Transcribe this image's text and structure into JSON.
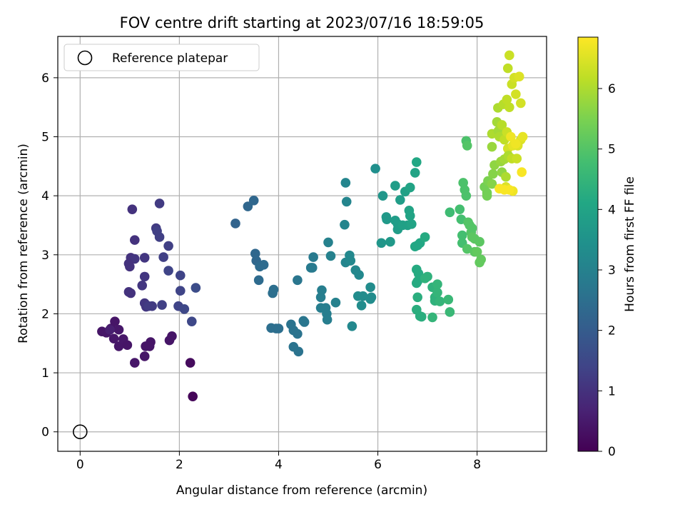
{
  "chart_data": {
    "type": "scatter",
    "title": "FOV centre drift starting at 2023/07/16 18:59:05",
    "xlabel": "Angular distance from reference (arcmin)",
    "ylabel": "Rotation from reference (arcmin)",
    "xlim": [
      -0.45,
      9.4
    ],
    "ylim": [
      -0.33,
      6.7
    ],
    "x_ticks": [
      0,
      2,
      4,
      6,
      8
    ],
    "y_ticks": [
      0,
      1,
      2,
      3,
      4,
      5,
      6
    ],
    "grid": true,
    "legend": {
      "position": "upper-left",
      "entries": [
        "Reference platepar"
      ]
    },
    "reference_point": {
      "x": 0,
      "y": 0
    },
    "colorbar": {
      "label": "Hours from first FF file",
      "colormap": "viridis",
      "range": [
        0,
        6.85
      ],
      "ticks": [
        0,
        1,
        2,
        3,
        4,
        5,
        6
      ]
    },
    "points": [
      {
        "x": 0.44,
        "y": 1.7,
        "h": 0.4
      },
      {
        "x": 0.53,
        "y": 1.68,
        "h": 0.42
      },
      {
        "x": 0.62,
        "y": 1.75,
        "h": 0.4
      },
      {
        "x": 0.7,
        "y": 1.87,
        "h": 0.4
      },
      {
        "x": 0.78,
        "y": 1.73,
        "h": 0.45
      },
      {
        "x": 0.68,
        "y": 1.58,
        "h": 0.45
      },
      {
        "x": 0.78,
        "y": 1.45,
        "h": 0.42
      },
      {
        "x": 0.87,
        "y": 1.57,
        "h": 0.45
      },
      {
        "x": 0.95,
        "y": 1.47,
        "h": 0.4
      },
      {
        "x": 1.1,
        "y": 1.17,
        "h": 0.45
      },
      {
        "x": 1.3,
        "y": 1.28,
        "h": 0.4
      },
      {
        "x": 1.32,
        "y": 1.45,
        "h": 0.4
      },
      {
        "x": 1.42,
        "y": 1.52,
        "h": 0.4
      },
      {
        "x": 1.4,
        "y": 1.45,
        "h": 0.4
      },
      {
        "x": 1.8,
        "y": 1.55,
        "h": 0.4
      },
      {
        "x": 1.85,
        "y": 1.62,
        "h": 0.4
      },
      {
        "x": 2.22,
        "y": 1.17,
        "h": 0.2
      },
      {
        "x": 2.27,
        "y": 0.6,
        "h": 0.1
      },
      {
        "x": 0.6,
        "y": 1.73,
        "h": 0.6
      },
      {
        "x": 1.05,
        "y": 3.77,
        "h": 1.0
      },
      {
        "x": 1.1,
        "y": 3.25,
        "h": 1.0
      },
      {
        "x": 1.02,
        "y": 2.95,
        "h": 1.0
      },
      {
        "x": 1.1,
        "y": 2.93,
        "h": 1.1
      },
      {
        "x": 0.98,
        "y": 2.85,
        "h": 1.0
      },
      {
        "x": 1.0,
        "y": 2.8,
        "h": 1.0
      },
      {
        "x": 0.98,
        "y": 2.37,
        "h": 1.0
      },
      {
        "x": 1.02,
        "y": 2.35,
        "h": 1.0
      },
      {
        "x": 1.3,
        "y": 2.95,
        "h": 1.1
      },
      {
        "x": 1.3,
        "y": 2.63,
        "h": 1.1
      },
      {
        "x": 1.25,
        "y": 2.48,
        "h": 1.1
      },
      {
        "x": 1.3,
        "y": 2.18,
        "h": 1.1
      },
      {
        "x": 1.33,
        "y": 2.12,
        "h": 1.1
      },
      {
        "x": 1.38,
        "y": 2.13,
        "h": 1.2
      },
      {
        "x": 1.45,
        "y": 2.13,
        "h": 1.2
      },
      {
        "x": 1.6,
        "y": 3.87,
        "h": 1.2
      },
      {
        "x": 1.53,
        "y": 3.45,
        "h": 1.2
      },
      {
        "x": 1.55,
        "y": 3.4,
        "h": 1.3
      },
      {
        "x": 1.6,
        "y": 3.3,
        "h": 1.3
      },
      {
        "x": 1.78,
        "y": 3.15,
        "h": 1.3
      },
      {
        "x": 1.68,
        "y": 2.96,
        "h": 1.3
      },
      {
        "x": 1.78,
        "y": 2.73,
        "h": 1.4
      },
      {
        "x": 1.65,
        "y": 2.15,
        "h": 1.3
      },
      {
        "x": 1.98,
        "y": 2.13,
        "h": 1.4
      },
      {
        "x": 2.02,
        "y": 2.65,
        "h": 1.4
      },
      {
        "x": 2.02,
        "y": 2.39,
        "h": 1.4
      },
      {
        "x": 2.1,
        "y": 2.08,
        "h": 1.5
      },
      {
        "x": 2.25,
        "y": 1.87,
        "h": 1.5
      },
      {
        "x": 2.33,
        "y": 2.44,
        "h": 1.6
      },
      {
        "x": 3.13,
        "y": 3.53,
        "h": 2.2
      },
      {
        "x": 3.38,
        "y": 3.82,
        "h": 2.3
      },
      {
        "x": 3.5,
        "y": 3.92,
        "h": 2.3
      },
      {
        "x": 3.53,
        "y": 3.02,
        "h": 2.3
      },
      {
        "x": 3.55,
        "y": 2.9,
        "h": 2.3
      },
      {
        "x": 3.62,
        "y": 2.8,
        "h": 2.4
      },
      {
        "x": 3.7,
        "y": 2.83,
        "h": 2.4
      },
      {
        "x": 3.6,
        "y": 2.57,
        "h": 2.4
      },
      {
        "x": 3.9,
        "y": 2.41,
        "h": 2.5
      },
      {
        "x": 3.88,
        "y": 2.35,
        "h": 2.5
      },
      {
        "x": 3.85,
        "y": 1.76,
        "h": 2.5
      },
      {
        "x": 3.95,
        "y": 1.75,
        "h": 2.5
      },
      {
        "x": 4.0,
        "y": 1.75,
        "h": 2.5
      },
      {
        "x": 4.25,
        "y": 1.82,
        "h": 2.6
      },
      {
        "x": 4.3,
        "y": 1.72,
        "h": 2.6
      },
      {
        "x": 4.38,
        "y": 1.66,
        "h": 2.6
      },
      {
        "x": 4.3,
        "y": 1.44,
        "h": 2.6
      },
      {
        "x": 4.4,
        "y": 1.36,
        "h": 2.6
      },
      {
        "x": 4.38,
        "y": 2.57,
        "h": 2.7
      },
      {
        "x": 4.52,
        "y": 1.86,
        "h": 2.7
      },
      {
        "x": 4.5,
        "y": 1.88,
        "h": 2.7
      },
      {
        "x": 4.65,
        "y": 2.78,
        "h": 2.8
      },
      {
        "x": 4.68,
        "y": 2.78,
        "h": 2.8
      },
      {
        "x": 4.7,
        "y": 2.96,
        "h": 2.8
      },
      {
        "x": 4.85,
        "y": 2.28,
        "h": 2.9
      },
      {
        "x": 4.87,
        "y": 2.4,
        "h": 2.9
      },
      {
        "x": 4.85,
        "y": 2.1,
        "h": 2.9
      },
      {
        "x": 4.95,
        "y": 2.1,
        "h": 2.9
      },
      {
        "x": 4.97,
        "y": 2.0,
        "h": 2.9
      },
      {
        "x": 4.98,
        "y": 1.9,
        "h": 2.9
      },
      {
        "x": 5.0,
        "y": 3.21,
        "h": 3.0
      },
      {
        "x": 5.05,
        "y": 2.98,
        "h": 3.0
      },
      {
        "x": 5.15,
        "y": 2.19,
        "h": 3.0
      },
      {
        "x": 5.33,
        "y": 3.51,
        "h": 3.1
      },
      {
        "x": 5.35,
        "y": 4.22,
        "h": 3.1
      },
      {
        "x": 5.37,
        "y": 3.9,
        "h": 3.1
      },
      {
        "x": 5.35,
        "y": 2.87,
        "h": 3.1
      },
      {
        "x": 5.43,
        "y": 2.99,
        "h": 3.2
      },
      {
        "x": 5.45,
        "y": 2.9,
        "h": 3.2
      },
      {
        "x": 5.48,
        "y": 1.79,
        "h": 3.2
      },
      {
        "x": 5.55,
        "y": 2.74,
        "h": 3.2
      },
      {
        "x": 5.62,
        "y": 2.66,
        "h": 3.2
      },
      {
        "x": 5.6,
        "y": 2.3,
        "h": 3.3
      },
      {
        "x": 5.67,
        "y": 2.14,
        "h": 3.3
      },
      {
        "x": 5.7,
        "y": 2.3,
        "h": 3.3
      },
      {
        "x": 5.85,
        "y": 2.45,
        "h": 3.3
      },
      {
        "x": 5.87,
        "y": 2.28,
        "h": 3.3
      },
      {
        "x": 5.85,
        "y": 2.25,
        "h": 3.3
      },
      {
        "x": 5.95,
        "y": 4.46,
        "h": 3.4
      },
      {
        "x": 6.07,
        "y": 3.2,
        "h": 3.6
      },
      {
        "x": 6.1,
        "y": 4.0,
        "h": 3.6
      },
      {
        "x": 6.17,
        "y": 3.64,
        "h": 3.7
      },
      {
        "x": 6.18,
        "y": 3.6,
        "h": 3.7
      },
      {
        "x": 6.25,
        "y": 3.22,
        "h": 3.7
      },
      {
        "x": 6.35,
        "y": 4.17,
        "h": 3.8
      },
      {
        "x": 6.35,
        "y": 3.58,
        "h": 3.8
      },
      {
        "x": 6.4,
        "y": 3.43,
        "h": 3.8
      },
      {
        "x": 6.4,
        "y": 3.52,
        "h": 3.8
      },
      {
        "x": 6.45,
        "y": 3.93,
        "h": 3.8
      },
      {
        "x": 6.5,
        "y": 3.5,
        "h": 3.9
      },
      {
        "x": 6.55,
        "y": 4.07,
        "h": 3.9
      },
      {
        "x": 6.6,
        "y": 3.5,
        "h": 3.9
      },
      {
        "x": 6.63,
        "y": 3.75,
        "h": 4.0
      },
      {
        "x": 6.65,
        "y": 3.66,
        "h": 4.0
      },
      {
        "x": 6.65,
        "y": 4.14,
        "h": 4.0
      },
      {
        "x": 6.68,
        "y": 3.52,
        "h": 4.0
      },
      {
        "x": 6.75,
        "y": 4.39,
        "h": 4.0
      },
      {
        "x": 6.78,
        "y": 4.57,
        "h": 4.1
      },
      {
        "x": 6.75,
        "y": 3.14,
        "h": 4.1
      },
      {
        "x": 6.8,
        "y": 3.16,
        "h": 4.1
      },
      {
        "x": 6.85,
        "y": 3.2,
        "h": 4.1
      },
      {
        "x": 6.95,
        "y": 3.3,
        "h": 4.2
      },
      {
        "x": 6.78,
        "y": 2.75,
        "h": 4.2
      },
      {
        "x": 6.82,
        "y": 2.68,
        "h": 4.2
      },
      {
        "x": 6.8,
        "y": 2.55,
        "h": 4.2
      },
      {
        "x": 6.78,
        "y": 2.52,
        "h": 4.2
      },
      {
        "x": 6.8,
        "y": 2.28,
        "h": 4.3
      },
      {
        "x": 6.78,
        "y": 2.07,
        "h": 4.3
      },
      {
        "x": 6.85,
        "y": 1.96,
        "h": 4.3
      },
      {
        "x": 6.88,
        "y": 1.95,
        "h": 4.3
      },
      {
        "x": 6.95,
        "y": 2.6,
        "h": 4.4
      },
      {
        "x": 7.0,
        "y": 2.63,
        "h": 4.4
      },
      {
        "x": 7.1,
        "y": 2.45,
        "h": 4.4
      },
      {
        "x": 7.15,
        "y": 2.28,
        "h": 4.4
      },
      {
        "x": 7.15,
        "y": 2.22,
        "h": 4.4
      },
      {
        "x": 7.2,
        "y": 2.36,
        "h": 4.5
      },
      {
        "x": 7.2,
        "y": 2.5,
        "h": 4.5
      },
      {
        "x": 7.1,
        "y": 1.94,
        "h": 4.5
      },
      {
        "x": 7.25,
        "y": 2.21,
        "h": 4.5
      },
      {
        "x": 7.42,
        "y": 2.24,
        "h": 4.6
      },
      {
        "x": 7.45,
        "y": 2.03,
        "h": 4.6
      },
      {
        "x": 7.45,
        "y": 3.72,
        "h": 4.7
      },
      {
        "x": 7.65,
        "y": 3.77,
        "h": 4.8
      },
      {
        "x": 7.68,
        "y": 3.6,
        "h": 4.8
      },
      {
        "x": 7.7,
        "y": 3.33,
        "h": 4.8
      },
      {
        "x": 7.7,
        "y": 3.2,
        "h": 4.8
      },
      {
        "x": 7.72,
        "y": 4.22,
        "h": 4.9
      },
      {
        "x": 7.75,
        "y": 4.1,
        "h": 4.9
      },
      {
        "x": 7.78,
        "y": 4.0,
        "h": 4.9
      },
      {
        "x": 7.78,
        "y": 4.93,
        "h": 4.9
      },
      {
        "x": 7.8,
        "y": 4.85,
        "h": 5.0
      },
      {
        "x": 7.82,
        "y": 3.55,
        "h": 5.0
      },
      {
        "x": 7.8,
        "y": 3.1,
        "h": 5.0
      },
      {
        "x": 7.85,
        "y": 3.5,
        "h": 5.0
      },
      {
        "x": 7.9,
        "y": 3.45,
        "h": 5.0
      },
      {
        "x": 7.88,
        "y": 3.38,
        "h": 5.0
      },
      {
        "x": 7.95,
        "y": 3.27,
        "h": 5.1
      },
      {
        "x": 7.95,
        "y": 3.05,
        "h": 5.1
      },
      {
        "x": 8.05,
        "y": 3.22,
        "h": 5.1
      },
      {
        "x": 8.05,
        "y": 2.87,
        "h": 5.2
      },
      {
        "x": 8.08,
        "y": 2.92,
        "h": 5.2
      },
      {
        "x": 8.0,
        "y": 3.05,
        "h": 5.2
      },
      {
        "x": 7.9,
        "y": 3.3,
        "h": 5.1
      },
      {
        "x": 8.15,
        "y": 4.15,
        "h": 5.4
      },
      {
        "x": 8.2,
        "y": 4.05,
        "h": 5.4
      },
      {
        "x": 8.2,
        "y": 4.0,
        "h": 5.4
      },
      {
        "x": 8.22,
        "y": 4.25,
        "h": 5.5
      },
      {
        "x": 8.3,
        "y": 4.2,
        "h": 5.6
      },
      {
        "x": 8.32,
        "y": 4.37,
        "h": 5.6
      },
      {
        "x": 8.3,
        "y": 4.83,
        "h": 5.8
      },
      {
        "x": 8.3,
        "y": 5.05,
        "h": 6.0
      },
      {
        "x": 8.35,
        "y": 4.52,
        "h": 5.7
      },
      {
        "x": 8.4,
        "y": 5.25,
        "h": 5.9
      },
      {
        "x": 8.43,
        "y": 5.1,
        "h": 5.9
      },
      {
        "x": 8.42,
        "y": 5.49,
        "h": 6.0
      },
      {
        "x": 8.45,
        "y": 5.0,
        "h": 6.0
      },
      {
        "x": 8.48,
        "y": 4.58,
        "h": 5.8
      },
      {
        "x": 8.5,
        "y": 5.2,
        "h": 6.1
      },
      {
        "x": 8.5,
        "y": 4.4,
        "h": 5.7
      },
      {
        "x": 8.53,
        "y": 5.55,
        "h": 6.1
      },
      {
        "x": 8.55,
        "y": 4.95,
        "h": 6.2
      },
      {
        "x": 8.55,
        "y": 4.62,
        "h": 5.9
      },
      {
        "x": 8.58,
        "y": 4.32,
        "h": 6.0
      },
      {
        "x": 8.58,
        "y": 4.15,
        "h": 6.5
      },
      {
        "x": 8.6,
        "y": 5.63,
        "h": 6.2
      },
      {
        "x": 8.6,
        "y": 5.08,
        "h": 6.3
      },
      {
        "x": 8.62,
        "y": 4.8,
        "h": 6.4
      },
      {
        "x": 8.63,
        "y": 4.68,
        "h": 6.0
      },
      {
        "x": 8.65,
        "y": 6.38,
        "h": 6.3
      },
      {
        "x": 8.62,
        "y": 6.16,
        "h": 6.2
      },
      {
        "x": 8.65,
        "y": 5.5,
        "h": 6.2
      },
      {
        "x": 8.7,
        "y": 5.89,
        "h": 6.3
      },
      {
        "x": 8.7,
        "y": 4.63,
        "h": 6.2
      },
      {
        "x": 8.72,
        "y": 4.85,
        "h": 6.6
      },
      {
        "x": 8.72,
        "y": 4.08,
        "h": 6.7
      },
      {
        "x": 8.65,
        "y": 4.1,
        "h": 6.8
      },
      {
        "x": 8.75,
        "y": 6.0,
        "h": 6.4
      },
      {
        "x": 8.78,
        "y": 5.72,
        "h": 6.4
      },
      {
        "x": 8.8,
        "y": 4.63,
        "h": 6.3
      },
      {
        "x": 8.82,
        "y": 4.85,
        "h": 6.5
      },
      {
        "x": 8.85,
        "y": 6.02,
        "h": 6.5
      },
      {
        "x": 8.88,
        "y": 5.57,
        "h": 6.4
      },
      {
        "x": 8.88,
        "y": 4.95,
        "h": 6.5
      },
      {
        "x": 8.92,
        "y": 5.0,
        "h": 6.6
      },
      {
        "x": 8.9,
        "y": 4.4,
        "h": 6.8
      },
      {
        "x": 8.55,
        "y": 4.1,
        "h": 6.8
      },
      {
        "x": 8.45,
        "y": 4.12,
        "h": 6.8
      },
      {
        "x": 8.68,
        "y": 5.0,
        "h": 6.7
      },
      {
        "x": 8.78,
        "y": 4.88,
        "h": 6.7
      }
    ]
  }
}
